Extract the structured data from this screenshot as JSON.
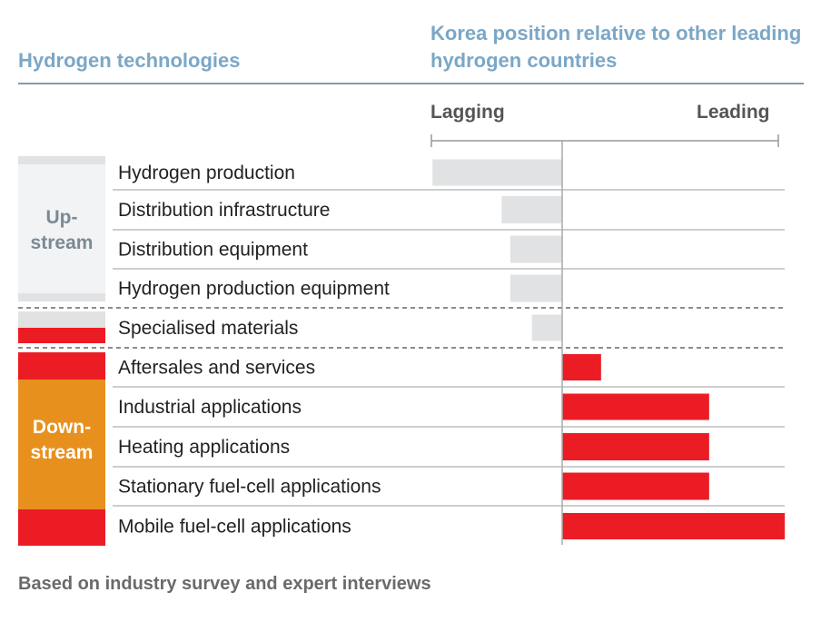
{
  "header": {
    "left_title": "Hydrogen technologies",
    "right_title": "Korea position relative to other leading hydrogen countries"
  },
  "scale": {
    "lagging_label": "Lagging",
    "leading_label": "Leading"
  },
  "groups": [
    {
      "label_line1": "Up-",
      "label_line2": "stream"
    },
    {
      "label_line1": "Down-",
      "label_line2": "stream"
    }
  ],
  "footer": "Based on industry survey and expert interviews",
  "colors": {
    "lagging_bar": "#e1e2e3",
    "leading_bar": "#ec1c24",
    "downstream": "#e8901e",
    "upstream": "#f2f3f4",
    "header": "#7ba7c7"
  },
  "chart_data": {
    "type": "bar",
    "orientation": "horizontal",
    "title": "",
    "xlabel": "",
    "ylabel": "",
    "xlim": [
      -1,
      1
    ],
    "categories": [
      "Hydrogen production",
      "Distribution infrastructure",
      "Distribution equipment",
      "Hydrogen production equipment",
      "Specialised materials",
      "Aftersales and services",
      "Industrial applications",
      "Heating applications",
      "Stationary fuel-cell applications",
      "Mobile fuel-cell applications"
    ],
    "values": [
      -0.6,
      -0.28,
      -0.24,
      -0.24,
      -0.14,
      0.18,
      0.68,
      0.68,
      0.68,
      1.03
    ],
    "grid": false,
    "legend": "none"
  }
}
